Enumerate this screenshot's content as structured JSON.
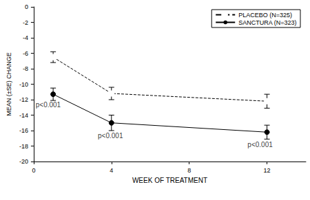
{
  "chart_data": {
    "type": "line",
    "xlabel": "WEEK OF TREATMENT",
    "ylabel": "MEAN (±SE) CHANGE",
    "x": [
      1,
      4,
      12
    ],
    "xlim": [
      0,
      14
    ],
    "xticks": [
      0,
      4,
      8,
      12
    ],
    "ylim": [
      -20,
      0
    ],
    "yticks": [
      -20,
      -18,
      -16,
      -14,
      -12,
      -10,
      -8,
      -6,
      -4,
      -2,
      0
    ],
    "grid": false,
    "legend": "upper right",
    "series": [
      {
        "name": "PLACEBO (N=325)",
        "color": "#000000",
        "marker": "open circle",
        "line_style": "dashed",
        "values": [
          -6.5,
          -11.2,
          -12.2
        ],
        "se": [
          0.7,
          0.8,
          0.9
        ]
      },
      {
        "name": "SANCTURA (N=323)",
        "color": "#000000",
        "marker": "filled circle",
        "line_style": "solid",
        "values": [
          -11.3,
          -15.0,
          -16.2
        ],
        "se": [
          0.8,
          1.0,
          0.9
        ]
      }
    ],
    "annotations": [
      {
        "text": "p<0.001",
        "x": 0.1,
        "y": -12.7
      },
      {
        "text": "p<0.001",
        "x": 3.3,
        "y": -16.7
      },
      {
        "text": "p<0.001",
        "x": 11.0,
        "y": -17.8
      }
    ]
  }
}
